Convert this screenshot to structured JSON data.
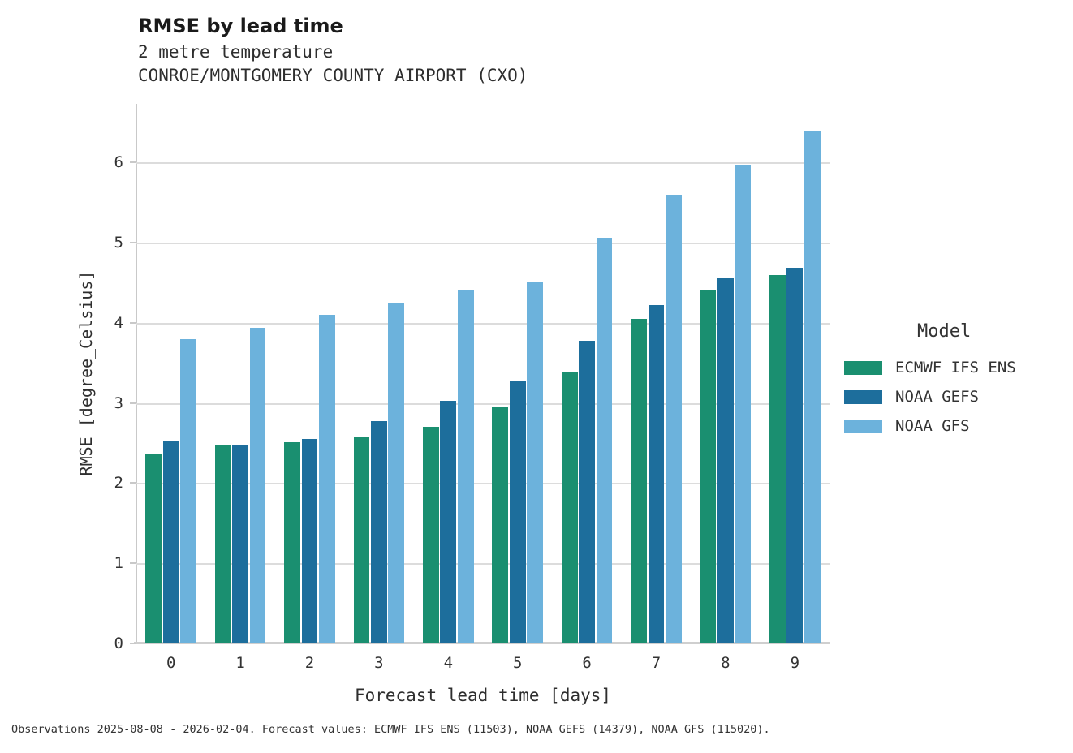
{
  "header": {
    "title": "RMSE by lead time",
    "subtitle1": "2 metre temperature",
    "subtitle2": "CONROE/MONTGOMERY COUNTY AIRPORT (CXO)"
  },
  "legend": {
    "title": "Model"
  },
  "footer": {
    "text": "Observations 2025-08-08 - 2026-02-04. Forecast values: ECMWF IFS ENS (11503), NOAA GEFS (14379), NOAA GFS (115020)."
  },
  "colors": {
    "ecmwf_green": "#1a8f70",
    "gefs_dark_blue": "#1d6e9c",
    "gfs_light_blue": "#6cb2dc",
    "gridline": "#dcdcdc",
    "axis_spine": "#c9c9c9",
    "text": "#2e2e2e"
  },
  "chart_data": {
    "type": "bar",
    "title": "RMSE by lead time",
    "subtitle": "2 metre temperature",
    "station": "CONROE/MONTGOMERY COUNTY AIRPORT (CXO)",
    "xlabel": "Forecast lead time [days]",
    "ylabel": "RMSE [degree_Celsius]",
    "categories": [
      "0",
      "1",
      "2",
      "3",
      "4",
      "5",
      "6",
      "7",
      "8",
      "9"
    ],
    "yticks": [
      0,
      1,
      2,
      3,
      4,
      5,
      6
    ],
    "ylim": [
      0,
      6.73
    ],
    "grid": "horizontal",
    "legend_position": "right-of-plot",
    "legend_title": "Model",
    "series": [
      {
        "name": "ECMWF IFS ENS",
        "color": "#1a8f70",
        "values": [
          2.37,
          2.47,
          2.51,
          2.57,
          2.7,
          2.95,
          3.38,
          4.05,
          4.4,
          4.59
        ]
      },
      {
        "name": "NOAA GEFS",
        "color": "#1d6e9c",
        "values": [
          2.53,
          2.48,
          2.55,
          2.77,
          3.03,
          3.28,
          3.78,
          4.22,
          4.55,
          4.69
        ]
      },
      {
        "name": "NOAA GFS",
        "color": "#6cb2dc",
        "values": [
          3.8,
          3.94,
          4.1,
          4.25,
          4.4,
          4.5,
          5.06,
          5.6,
          5.97,
          6.39
        ]
      }
    ]
  }
}
